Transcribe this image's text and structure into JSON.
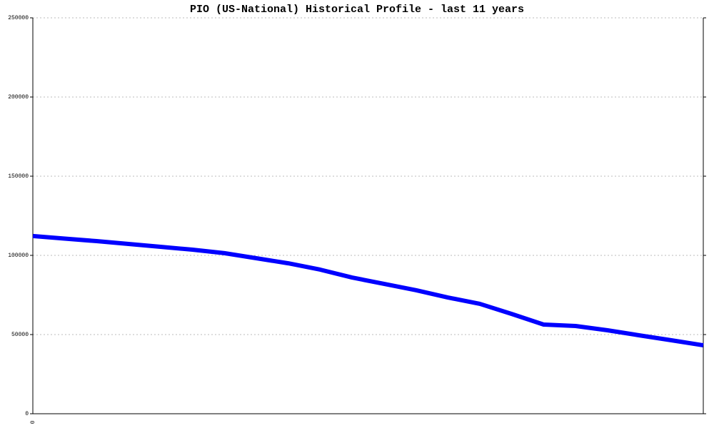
{
  "chart_data": {
    "type": "line",
    "title": "PIO (US-National) Historical Profile - last 11 years",
    "categories": [
      "0",
      null,
      null,
      null,
      null,
      null,
      null,
      null,
      null,
      null,
      null,
      null,
      null,
      null,
      null,
      null,
      null,
      null,
      null,
      null,
      null,
      null
    ],
    "series": [
      {
        "name": "PIO",
        "color": "#0000ff",
        "values": [
          112200,
          110600,
          109000,
          107200,
          105400,
          103600,
          101400,
          98200,
          95000,
          91000,
          86000,
          82000,
          78000,
          73400,
          69400,
          63000,
          56300,
          55400,
          52700,
          49500,
          46400,
          43200
        ]
      }
    ],
    "ylim": [
      0,
      250000
    ],
    "yticks": [
      0,
      50000,
      100000,
      150000,
      200000,
      250000
    ],
    "grid": true
  }
}
